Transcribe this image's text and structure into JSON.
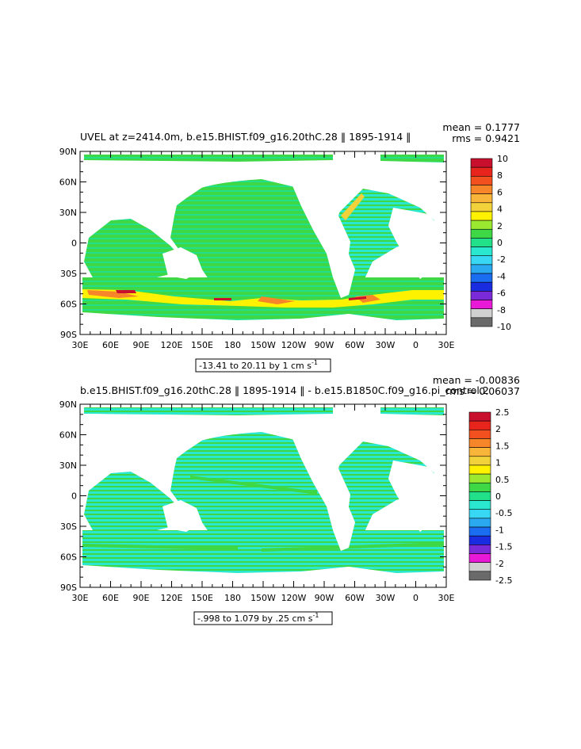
{
  "chart_data": [
    {
      "type": "heatmap",
      "title": "UVEL at z=2414.0m, b.e15.BHIST.f09_g16.20thC.28 ‖ 1895-1914 ‖",
      "stats": {
        "mean": "mean = 0.1777",
        "rms": "rms = 0.9421"
      },
      "range_label": "-13.41 to 20.11 by 1 cm s",
      "range_unit_exp": "-1",
      "xlim": [
        30,
        390
      ],
      "ylim": [
        -90,
        90
      ],
      "x_ticks": [
        {
          "value": 30,
          "label": "30E"
        },
        {
          "value": 60,
          "label": "60E"
        },
        {
          "value": 90,
          "label": "90E"
        },
        {
          "value": 120,
          "label": "120E"
        },
        {
          "value": 150,
          "label": "150E"
        },
        {
          "value": 180,
          "label": "180"
        },
        {
          "value": 210,
          "label": "150W"
        },
        {
          "value": 240,
          "label": "120W"
        },
        {
          "value": 270,
          "label": "90W"
        },
        {
          "value": 300,
          "label": "60W"
        },
        {
          "value": 330,
          "label": "30W"
        },
        {
          "value": 360,
          "label": "0"
        },
        {
          "value": 390,
          "label": "30E"
        }
      ],
      "y_ticks": [
        {
          "value": 90,
          "label": "90N"
        },
        {
          "value": 60,
          "label": "60N"
        },
        {
          "value": 30,
          "label": "30N"
        },
        {
          "value": 0,
          "label": "0"
        },
        {
          "value": -30,
          "label": "30S"
        },
        {
          "value": -60,
          "label": "60S"
        },
        {
          "value": -90,
          "label": "90S"
        }
      ],
      "colorbar": {
        "labels": [
          "10",
          "8",
          "6",
          "4",
          "2",
          "0",
          "-2",
          "-4",
          "-6",
          "-8",
          "-10"
        ],
        "colors": [
          "#c8102e",
          "#e8251c",
          "#f2501e",
          "#f7862a",
          "#f9b53a",
          "#f2d23a",
          "#fff200",
          "#9be830",
          "#3ed846",
          "#22e08a",
          "#2ae8d0",
          "#38d8f5",
          "#2aa8f0",
          "#1a6cf0",
          "#1a2ce0",
          "#7a2ad8",
          "#e81ad8",
          "#d0d0d0",
          "#6a6a6a"
        ]
      },
      "field": {
        "dominant_band": "0 to 2 (green) and -2 to 0 (cyan)",
        "extremes_region": "Southern Ocean near 45S-60S (values up to 10 and down to -10)"
      }
    },
    {
      "type": "heatmap",
      "title": "b.e15.BHIST.f09_g16.20thC.28 ‖ 1895-1914 ‖ - b.e15.B1850C.f09_g16.pi_control.2",
      "stats": {
        "mean": "mean = -0.00836",
        "rms": "rms = 0.06037"
      },
      "range_label": "-.998 to 1.079 by .25 cm s",
      "range_unit_exp": "-1",
      "xlim": [
        30,
        390
      ],
      "ylim": [
        -90,
        90
      ],
      "x_ticks": [
        {
          "value": 30,
          "label": "30E"
        },
        {
          "value": 60,
          "label": "60E"
        },
        {
          "value": 90,
          "label": "90E"
        },
        {
          "value": 120,
          "label": "120E"
        },
        {
          "value": 150,
          "label": "150E"
        },
        {
          "value": 180,
          "label": "180"
        },
        {
          "value": 210,
          "label": "150W"
        },
        {
          "value": 240,
          "label": "120W"
        },
        {
          "value": 270,
          "label": "90W"
        },
        {
          "value": 300,
          "label": "60W"
        },
        {
          "value": 330,
          "label": "30W"
        },
        {
          "value": 360,
          "label": "0"
        },
        {
          "value": 390,
          "label": "30E"
        }
      ],
      "y_ticks": [
        {
          "value": 90,
          "label": "90N"
        },
        {
          "value": 60,
          "label": "60N"
        },
        {
          "value": 30,
          "label": "30N"
        },
        {
          "value": 0,
          "label": "0"
        },
        {
          "value": -30,
          "label": "30S"
        },
        {
          "value": -60,
          "label": "60S"
        },
        {
          "value": -90,
          "label": "90S"
        }
      ],
      "colorbar": {
        "labels": [
          "2.5",
          "2",
          "1.5",
          "1",
          "0.5",
          "0",
          "-0.5",
          "-1",
          "-1.5",
          "-2",
          "-2.5"
        ],
        "colors": [
          "#c8102e",
          "#e8251c",
          "#f2501e",
          "#f7862a",
          "#f9b53a",
          "#f2d23a",
          "#fff200",
          "#9be830",
          "#3ed846",
          "#22e08a",
          "#2ae8d0",
          "#38d8f5",
          "#2aa8f0",
          "#1a6cf0",
          "#1a2ce0",
          "#7a2ad8",
          "#e81ad8",
          "#d0d0d0",
          "#6a6a6a"
        ]
      },
      "field": {
        "dominant_band": "0 to 0.5 (green) and -0.5 to 0 (cyan)",
        "extremes_region": "none visible"
      }
    }
  ]
}
